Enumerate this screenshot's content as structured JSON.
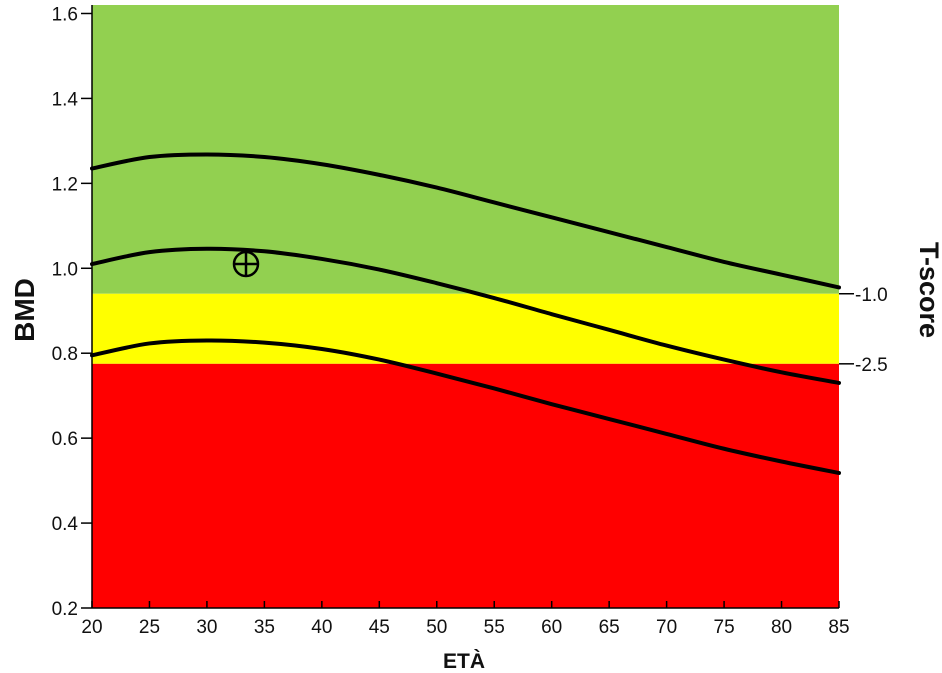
{
  "chart_data": {
    "type": "line",
    "xlabel": "ETÀ",
    "ylabel": "BMD",
    "y2label": "T-score",
    "xlim": [
      20,
      85
    ],
    "ylim": [
      0.2,
      1.62
    ],
    "x_ticks": [
      20,
      25,
      30,
      35,
      40,
      45,
      50,
      55,
      60,
      65,
      70,
      75,
      80,
      85
    ],
    "x_tick_labels": [
      "20",
      "25",
      "30",
      "35",
      "40",
      "45",
      "50",
      "55",
      "60",
      "65",
      "70",
      "75",
      "80",
      "85"
    ],
    "y_ticks": [
      0.2,
      0.4,
      0.6,
      0.8,
      1.0,
      1.2,
      1.4,
      1.6
    ],
    "y_tick_labels": [
      "0.2",
      "0.4",
      "0.6",
      "0.8",
      "1.0",
      "1.2",
      "1.4",
      "1.6"
    ],
    "bands": [
      {
        "from": 0.94,
        "to": 1.62,
        "color": "#92d050"
      },
      {
        "from": 0.775,
        "to": 0.94,
        "color": "#ffff00"
      },
      {
        "from": 0.2,
        "to": 0.775,
        "color": "#ff0000"
      }
    ],
    "t_score_ticks": [
      {
        "y": 0.94,
        "label": "-1.0"
      },
      {
        "y": 0.775,
        "label": "-2.5"
      }
    ],
    "series": [
      {
        "x": [
          20,
          25,
          30,
          35,
          40,
          45,
          50,
          55,
          60,
          65,
          70,
          75,
          80,
          85
        ],
        "values": [
          1.235,
          1.262,
          1.268,
          1.262,
          1.245,
          1.22,
          1.19,
          1.155,
          1.12,
          1.085,
          1.05,
          1.015,
          0.985,
          0.955
        ]
      },
      {
        "x": [
          20,
          25,
          30,
          35,
          40,
          45,
          50,
          55,
          60,
          65,
          70,
          75,
          80,
          85
        ],
        "values": [
          1.01,
          1.038,
          1.046,
          1.04,
          1.022,
          0.997,
          0.965,
          0.93,
          0.892,
          0.855,
          0.818,
          0.785,
          0.755,
          0.73
        ]
      },
      {
        "x": [
          20,
          25,
          30,
          35,
          40,
          45,
          50,
          55,
          60,
          65,
          70,
          75,
          80,
          85
        ],
        "values": [
          0.795,
          0.823,
          0.83,
          0.825,
          0.81,
          0.785,
          0.752,
          0.717,
          0.68,
          0.645,
          0.61,
          0.575,
          0.545,
          0.518
        ]
      }
    ],
    "points": [
      {
        "x": 33.4,
        "y": 1.01
      }
    ],
    "line_color": "#000000",
    "grid": false
  }
}
